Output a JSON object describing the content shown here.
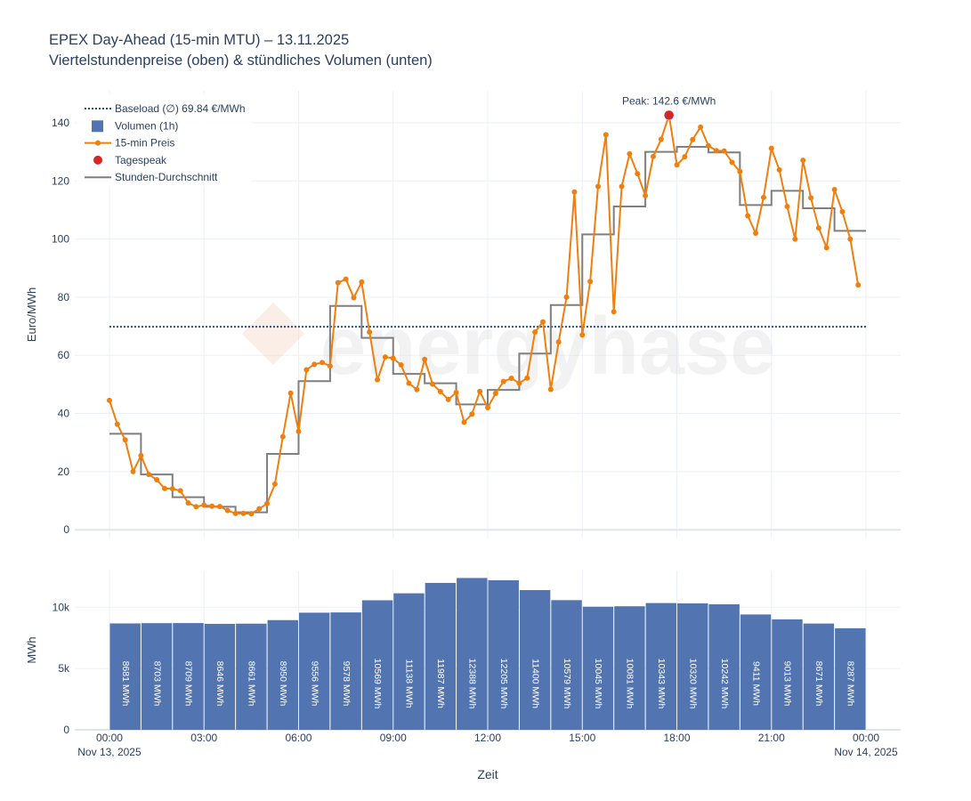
{
  "chart_data": [
    {
      "type": "line",
      "title": "EPEX Day-Ahead (15-min MTU) – 13.11.2025",
      "subtitle": "Viertelstundenpreise (oben) & stündliches Volumen (unten)",
      "ylabel": "Euro/MWh",
      "ylim": [
        -3,
        151
      ],
      "y_ticks": [
        0,
        20,
        40,
        60,
        80,
        100,
        120,
        140
      ],
      "x_range_hours": [
        -1.1,
        25.1
      ],
      "x_grid_hours": [
        0,
        3,
        6,
        9,
        12,
        15,
        18,
        21,
        24
      ],
      "watermark": "energyhase",
      "legend": [
        {
          "key": "baseload",
          "label": "Baseload (∅) 69.84 €/MWh"
        },
        {
          "key": "volume",
          "label": "Volumen (1h)"
        },
        {
          "key": "price",
          "label": "15-min Preis"
        },
        {
          "key": "peak",
          "label": "Tagespeak"
        },
        {
          "key": "hourly",
          "label": "Stunden-Durchschnitt"
        }
      ],
      "baseload": {
        "name": "Baseload (∅)",
        "value": 69.84,
        "unit": "€/MWh"
      },
      "peak": {
        "hour": 17.75,
        "value": 142.6,
        "label": "Peak: 142.6 €/MWh"
      },
      "series": [
        {
          "name": "15-min Preis",
          "interval_hours": 0.25,
          "values": [
            44.5,
            36.3,
            30.9,
            20.0,
            25.5,
            19.0,
            17.2,
            14.2,
            14.1,
            13.4,
            9.2,
            7.9,
            8.5,
            8.1,
            8.0,
            6.6,
            5.6,
            5.6,
            5.5,
            7.2,
            9.0,
            15.7,
            32.0,
            47.0,
            33.8,
            55.0,
            56.9,
            57.5,
            56.3,
            85.0,
            86.2,
            79.8,
            85.2,
            68.0,
            51.6,
            59.4,
            59.0,
            56.7,
            50.4,
            48.2,
            58.6,
            50.1,
            47.5,
            44.8,
            47.2,
            37.0,
            39.8,
            47.6,
            42.0,
            46.9,
            51.0,
            52.1,
            50.4,
            52.2,
            68.0,
            71.5,
            48.3,
            64.6,
            80.0,
            116.2,
            67.0,
            85.4,
            118.1,
            135.9,
            75.0,
            118.1,
            129.3,
            122.5,
            114.9,
            128.4,
            134.3,
            142.6,
            125.5,
            128.3,
            134.2,
            138.5,
            132.1,
            130.4,
            130.3,
            126.4,
            123.2,
            108.0,
            102.0,
            114.3,
            131.2,
            123.8,
            111.2,
            100.0,
            127.1,
            114.2,
            103.8,
            97.0,
            117.0,
            109.4,
            100.0,
            84.2
          ]
        },
        {
          "name": "Stunden-Durchschnitt",
          "values": [
            33.0,
            19.0,
            11.2,
            7.9,
            6.0,
            26.1,
            51.1,
            77.0,
            66.0,
            53.6,
            50.4,
            43.1,
            48.1,
            60.6,
            77.3,
            101.6,
            111.2,
            130.0,
            131.7,
            129.8,
            111.7,
            116.6,
            110.6,
            102.8
          ]
        }
      ]
    },
    {
      "type": "bar",
      "ylabel": "MWh",
      "xlabel": "Zeit",
      "ylim": [
        0,
        13000
      ],
      "y_ticks": [
        0,
        5000,
        10000
      ],
      "y_tick_labels": [
        "0",
        "5k",
        "10k"
      ],
      "color": "#5274b0",
      "x_tick_labels": [
        "00:00",
        "03:00",
        "06:00",
        "09:00",
        "12:00",
        "15:00",
        "18:00",
        "21:00",
        "00:00"
      ],
      "x_date_labels": [
        "Nov 13, 2025",
        "Nov 14, 2025"
      ],
      "categories": [
        "00",
        "01",
        "02",
        "03",
        "04",
        "05",
        "06",
        "07",
        "08",
        "09",
        "10",
        "11",
        "12",
        "13",
        "14",
        "15",
        "16",
        "17",
        "18",
        "19",
        "20",
        "21",
        "22",
        "23"
      ],
      "values": [
        8681,
        8703,
        8709,
        8646,
        8661,
        8950,
        9556,
        9578,
        10569,
        11138,
        11987,
        12388,
        12205,
        11400,
        10579,
        10045,
        10081,
        10343,
        10320,
        10242,
        9411,
        9013,
        8671,
        8287
      ],
      "value_labels": [
        "8681 MWh",
        "8703 MWh",
        "8709 MWh",
        "8646 MWh",
        "8661 MWh",
        "8950 MWh",
        "9556 MWh",
        "9578 MWh",
        "10569 MWh",
        "11138 MWh",
        "11987 MWh",
        "12388 MWh",
        "12205 MWh",
        "11400 MWh",
        "10579 MWh",
        "10045 MWh",
        "10081 MWh",
        "10343 MWh",
        "10320 MWh",
        "10242 MWh",
        "9411 MWh",
        "9013 MWh",
        "8671 MWh",
        "8287 MWh"
      ]
    }
  ]
}
